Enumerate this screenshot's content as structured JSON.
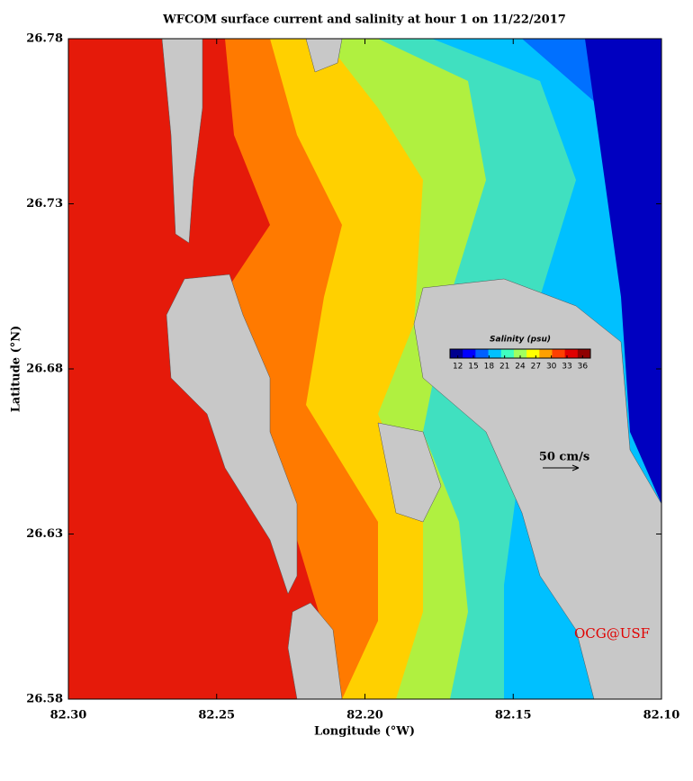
{
  "chart_data": {
    "type": "map",
    "title": "WFCOM surface current and salinity at hour 1 on 11/22/2017",
    "x_label": "Longitude (°W)",
    "y_label": "Latitude (°N)",
    "xlim": [
      82.3,
      82.1
    ],
    "ylim": [
      26.58,
      26.78
    ],
    "xticks": [
      {
        "value": 82.3,
        "label": "82.30"
      },
      82.25,
      {
        "value": 82.2,
        "label": "82.20"
      },
      82.15,
      {
        "value": 82.1,
        "label": "82.10"
      }
    ],
    "yticks": [
      26.58,
      26.63,
      26.68,
      26.73,
      26.78
    ],
    "colorbar": {
      "label": "Salinity (psu)",
      "lim": [
        10.5,
        37.5
      ],
      "ticks": [
        12,
        15,
        18,
        21,
        24,
        27,
        30,
        33,
        36
      ],
      "colors": [
        "#00008f",
        "#0000ff",
        "#0060ff",
        "#00c0ff",
        "#40ffc0",
        "#a0ff60",
        "#ffff00",
        "#ffa000",
        "#ff4000",
        "#e00000",
        "#8f0000"
      ]
    },
    "scale_label": "50 cm/s",
    "credit": "OCG@USF"
  }
}
